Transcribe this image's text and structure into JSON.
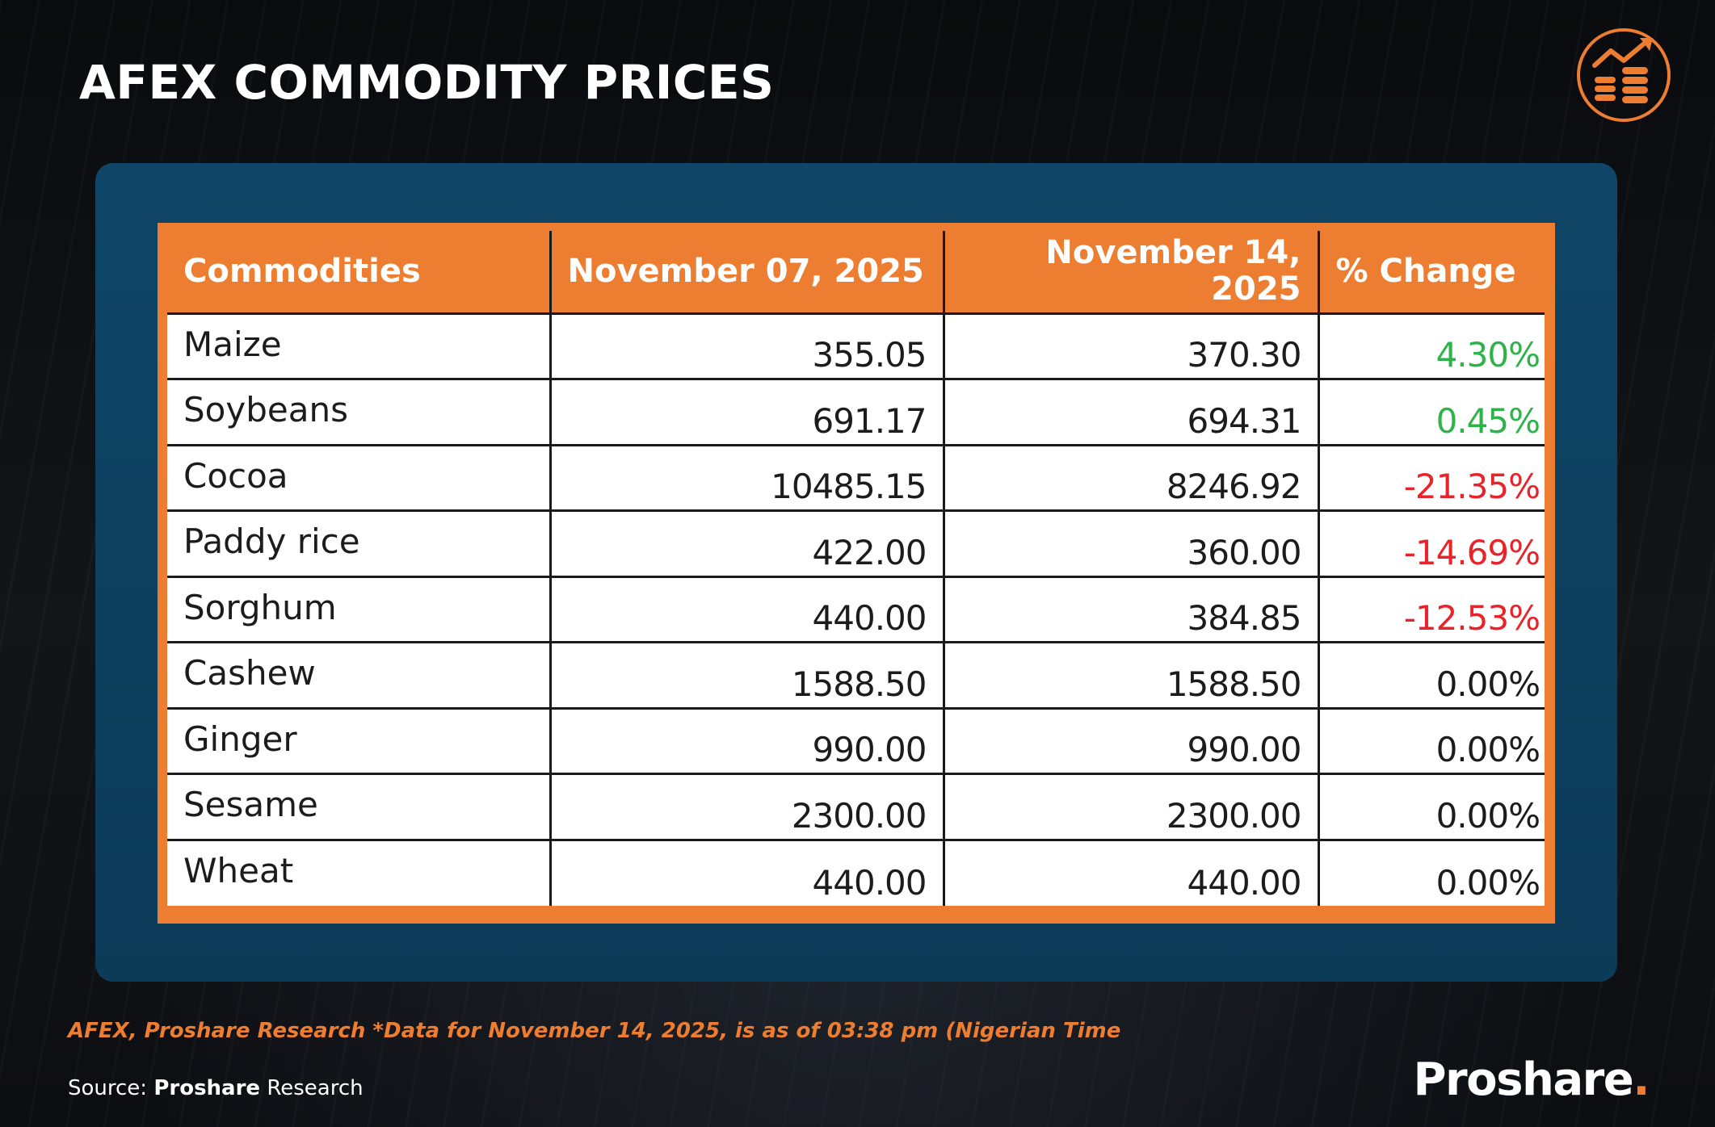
{
  "page": {
    "title": "AFEX COMMODITY PRICES"
  },
  "table": {
    "headers": {
      "commodities": "Commodities",
      "date1": "November 07, 2025",
      "date2_line1": "November 14,",
      "date2_line2": "2025",
      "change": "% Change"
    },
    "rows": [
      {
        "name": "Maize",
        "nov07": "355.05",
        "nov14": "370.30",
        "change": "4.30%",
        "trend": "pos"
      },
      {
        "name": "Soybeans",
        "nov07": "691.17",
        "nov14": "694.31",
        "change": "0.45%",
        "trend": "pos"
      },
      {
        "name": "Cocoa",
        "nov07": "10485.15",
        "nov14": "8246.92",
        "change": "-21.35%",
        "trend": "neg"
      },
      {
        "name": "Paddy rice",
        "nov07": "422.00",
        "nov14": "360.00",
        "change": "-14.69%",
        "trend": "neg"
      },
      {
        "name": "Sorghum",
        "nov07": "440.00",
        "nov14": "384.85",
        "change": "-12.53%",
        "trend": "neg"
      },
      {
        "name": "Cashew",
        "nov07": "1588.50",
        "nov14": "1588.50",
        "change": "0.00%",
        "trend": "zero"
      },
      {
        "name": "Ginger",
        "nov07": "990.00",
        "nov14": "990.00",
        "change": "0.00%",
        "trend": "zero"
      },
      {
        "name": "Sesame",
        "nov07": "2300.00",
        "nov14": "2300.00",
        "change": "0.00%",
        "trend": "zero"
      },
      {
        "name": "Wheat",
        "nov07": "440.00",
        "nov14": "440.00",
        "change": "0.00%",
        "trend": "zero"
      }
    ]
  },
  "footer": {
    "note": "AFEX, Proshare Research *Data for November 14, 2025, is as of 03:38 pm (Nigerian Time",
    "source_label": "Source: ",
    "source_name": "Proshare",
    "source_suffix": " Research",
    "brand": "Proshare",
    "brand_dot": "."
  },
  "icons": {
    "logo": "coins-growth-icon"
  },
  "colors": {
    "accent": "#ec7d31",
    "panel": "#0f4566",
    "positive": "#2db34a",
    "negative": "#e8232a"
  }
}
